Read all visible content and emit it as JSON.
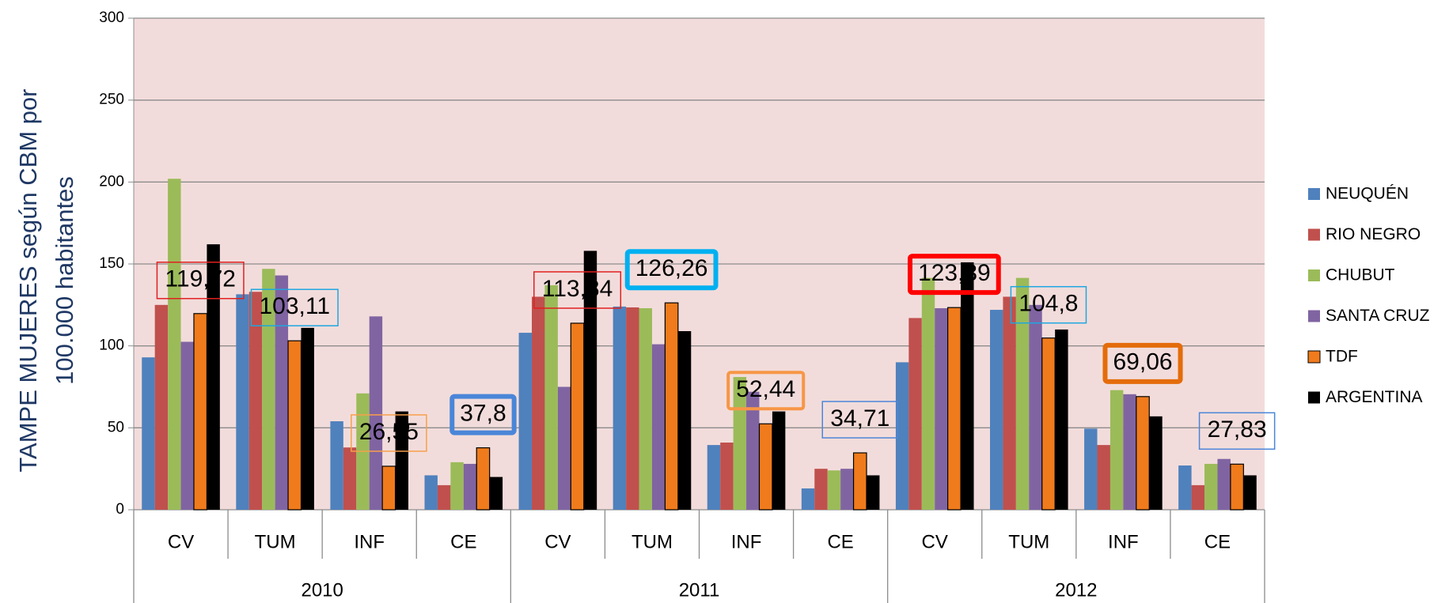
{
  "chart_data": {
    "type": "bar",
    "ylabel": [
      "TAMPE  MUJERES según CBM por",
      "100.000 habitantes"
    ],
    "categories": [
      "CV",
      "TUM",
      "INF",
      "CE",
      "CV",
      "TUM",
      "INF",
      "CE",
      "CV",
      "TUM",
      "INF",
      "CE"
    ],
    "groups": [
      "2010",
      "2011",
      "2012"
    ],
    "ylim": [
      0,
      300
    ],
    "yticks": [
      0,
      50,
      100,
      150,
      200,
      250,
      300
    ],
    "grid": true,
    "series": [
      {
        "name": "NEUQUÉN",
        "color": "#4f81bd",
        "values": [
          93,
          131.5,
          54,
          21,
          108,
          124,
          39.5,
          13,
          90,
          122,
          49.5,
          27
        ]
      },
      {
        "name": "RIO NEGRO",
        "color": "#c0504d",
        "values": [
          125,
          133,
          38,
          15,
          130,
          123.5,
          41,
          25,
          117,
          130,
          39.5,
          15
        ]
      },
      {
        "name": "CHUBUT",
        "color": "#9bbb59",
        "values": [
          202,
          147,
          71,
          29,
          137,
          123,
          81,
          24,
          141.5,
          141.5,
          73,
          28
        ]
      },
      {
        "name": "SANTA CRUZ",
        "color": "#8064a2",
        "values": [
          102.5,
          143,
          118,
          28,
          75,
          101,
          72,
          25,
          123,
          125,
          70.5,
          31
        ]
      },
      {
        "name": "TDF",
        "color": "#f07b1c",
        "values": [
          119.72,
          103.11,
          26.55,
          37.8,
          113.84,
          126.26,
          52.44,
          34.71,
          123.39,
          104.8,
          69.06,
          27.83
        ],
        "value_labels": [
          "119,72",
          "103,11",
          "26,55",
          "37,8",
          "113,84",
          "126,26",
          "52,44",
          "34,71",
          "123,39",
          "104,8",
          "69,06",
          "27,83"
        ],
        "label_colors": [
          "#e02020",
          "#1ea7e0",
          "#f7a04a",
          "#4a86d8",
          "#e02020",
          "#00b0f0",
          "#f79646",
          "#4a86d8",
          "#ff0000",
          "#1ea7e0",
          "#e46c0a",
          "#4a86d8"
        ]
      },
      {
        "name": "ARGENTINA",
        "color": "#000000",
        "values": [
          162,
          111,
          60,
          20,
          158,
          109,
          60,
          21,
          151,
          110,
          57,
          21
        ]
      }
    ]
  }
}
